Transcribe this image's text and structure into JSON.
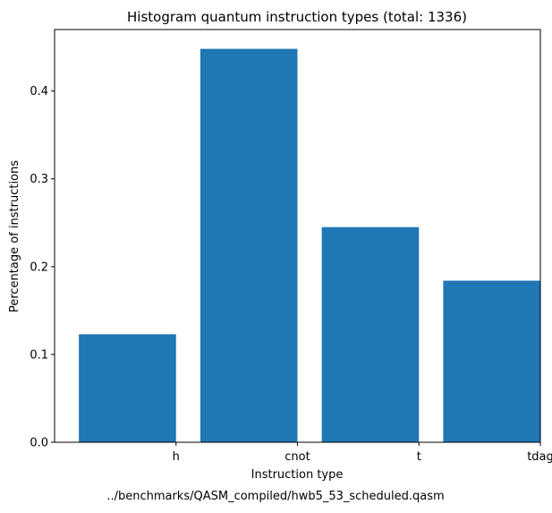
{
  "chart_data": {
    "type": "bar",
    "title": "Histogram quantum instruction types (total: 1336)",
    "xlabel": "Instruction type",
    "ylabel": "Percentage of instructions",
    "caption": "../benchmarks/QASM_compiled/hwb5_53_scheduled.qasm",
    "categories": [
      "h",
      "cnot",
      "t",
      "tdag"
    ],
    "values": [
      0.123,
      0.448,
      0.245,
      0.184
    ],
    "ylim": [
      0,
      0.47
    ],
    "yticks": [
      0.0,
      0.1,
      0.2,
      0.3,
      0.4
    ],
    "ytick_labels": [
      "0.0",
      "0.1",
      "0.2",
      "0.3",
      "0.4"
    ],
    "grid": false,
    "bar_color": "#1f77b4"
  }
}
